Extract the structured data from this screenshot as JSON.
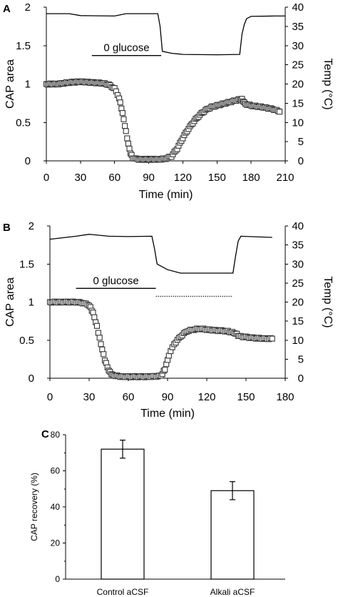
{
  "chart_data": [
    {
      "panel": "A",
      "type": "scatter",
      "xlabel": "Time (min)",
      "ylabel": "CAP area",
      "y2label": "Temp (°C)",
      "xlim": [
        0,
        210
      ],
      "ylim": [
        0,
        2
      ],
      "y2lim": [
        0,
        40
      ],
      "xticks": [
        0,
        30,
        60,
        90,
        120,
        150,
        180,
        210
      ],
      "yticks": [
        0,
        0.5,
        1,
        1.5,
        2
      ],
      "y2ticks": [
        0,
        5,
        10,
        15,
        20,
        25,
        30,
        35,
        40
      ],
      "annotation": {
        "text": "0 glucose",
        "x_start": 40,
        "x_end": 101,
        "y": 1.37
      },
      "series": [
        {
          "kind": "cap-markers",
          "axis": "left",
          "points": [
            [
              0,
              1
            ],
            [
              10,
              1
            ],
            [
              20,
              1.02
            ],
            [
              30,
              1.03
            ],
            [
              40,
              1.02
            ],
            [
              50,
              1.01
            ],
            [
              55,
              0.99
            ],
            [
              60,
              0.94
            ],
            [
              64,
              0.82
            ],
            [
              67,
              0.62
            ],
            [
              70,
              0.38
            ],
            [
              72,
              0.22
            ],
            [
              74,
              0.1
            ],
            [
              76,
              0.04
            ],
            [
              80,
              0.02
            ],
            [
              90,
              0.02
            ],
            [
              100,
              0.02
            ],
            [
              105,
              0.03
            ],
            [
              110,
              0.06
            ],
            [
              115,
              0.16
            ],
            [
              120,
              0.3
            ],
            [
              125,
              0.42
            ],
            [
              130,
              0.52
            ],
            [
              135,
              0.6
            ],
            [
              140,
              0.66
            ],
            [
              145,
              0.7
            ],
            [
              150,
              0.72
            ],
            [
              155,
              0.74
            ],
            [
              160,
              0.76
            ],
            [
              165,
              0.78
            ],
            [
              170,
              0.8
            ],
            [
              172,
              0.8
            ],
            [
              175,
              0.74
            ],
            [
              180,
              0.72
            ],
            [
              190,
              0.7
            ],
            [
              200,
              0.67
            ],
            [
              205,
              0.64
            ]
          ]
        },
        {
          "kind": "temperature",
          "axis": "right",
          "points": [
            [
              0,
              38.3
            ],
            [
              20,
              38.3
            ],
            [
              30,
              37.8
            ],
            [
              60,
              37.7
            ],
            [
              70,
              38.3
            ],
            [
              98,
              38.3
            ],
            [
              100,
              35
            ],
            [
              102,
              28.5
            ],
            [
              110,
              28
            ],
            [
              120,
              27.7
            ],
            [
              150,
              27.6
            ],
            [
              170,
              27.7
            ],
            [
              172,
              33
            ],
            [
              174,
              35.5
            ],
            [
              176,
              37
            ],
            [
              180,
              37.6
            ],
            [
              200,
              37.7
            ],
            [
              210,
              37.7
            ]
          ]
        }
      ]
    },
    {
      "panel": "B",
      "type": "scatter",
      "xlabel": "Time (min)",
      "ylabel": "CAP area",
      "y2label": "Temp (°C)",
      "xlim": [
        0,
        180
      ],
      "ylim": [
        0,
        2
      ],
      "y2lim": [
        0,
        40
      ],
      "xticks": [
        0,
        30,
        60,
        90,
        120,
        150,
        180
      ],
      "yticks": [
        0,
        0.5,
        1,
        1.5,
        2
      ],
      "y2ticks": [
        0,
        5,
        10,
        15,
        20,
        25,
        30,
        35,
        40
      ],
      "annotation": {
        "text": "0 glucose",
        "x_start": 20,
        "x_end": 81,
        "y": 1.18,
        "dotted_end": 140
      },
      "series": [
        {
          "kind": "cap-markers",
          "axis": "left",
          "points": [
            [
              0,
              1
            ],
            [
              10,
              1
            ],
            [
              20,
              1
            ],
            [
              25,
              0.99
            ],
            [
              30,
              0.96
            ],
            [
              33,
              0.86
            ],
            [
              36,
              0.68
            ],
            [
              39,
              0.45
            ],
            [
              42,
              0.24
            ],
            [
              45,
              0.1
            ],
            [
              48,
              0.04
            ],
            [
              55,
              0.02
            ],
            [
              65,
              0.02
            ],
            [
              75,
              0.02
            ],
            [
              85,
              0.03
            ],
            [
              88,
              0.12
            ],
            [
              91,
              0.3
            ],
            [
              95,
              0.45
            ],
            [
              100,
              0.55
            ],
            [
              105,
              0.62
            ],
            [
              110,
              0.64
            ],
            [
              115,
              0.65
            ],
            [
              125,
              0.63
            ],
            [
              135,
              0.62
            ],
            [
              142,
              0.59
            ],
            [
              145,
              0.55
            ],
            [
              155,
              0.53
            ],
            [
              165,
              0.52
            ],
            [
              170,
              0.52
            ]
          ]
        },
        {
          "kind": "temperature",
          "axis": "right",
          "points": [
            [
              0,
              36.5
            ],
            [
              20,
              37.3
            ],
            [
              30,
              37.8
            ],
            [
              45,
              37.3
            ],
            [
              60,
              37.2
            ],
            [
              78,
              37.3
            ],
            [
              80,
              34
            ],
            [
              82,
              30
            ],
            [
              90,
              28.5
            ],
            [
              100,
              27.6
            ],
            [
              140,
              27.6
            ],
            [
              142,
              32
            ],
            [
              144,
              36
            ],
            [
              146,
              37.3
            ],
            [
              160,
              37.1
            ],
            [
              170,
              37
            ]
          ]
        }
      ]
    },
    {
      "panel": "C",
      "type": "bar",
      "ylabel": "CAP recovery (%)",
      "ylim": [
        0,
        80
      ],
      "yticks": [
        0,
        20,
        40,
        60,
        80
      ],
      "categories": [
        "Control aCSF",
        "Alkali aCSF"
      ],
      "values": [
        72,
        49
      ],
      "errors": [
        5,
        5
      ]
    }
  ]
}
